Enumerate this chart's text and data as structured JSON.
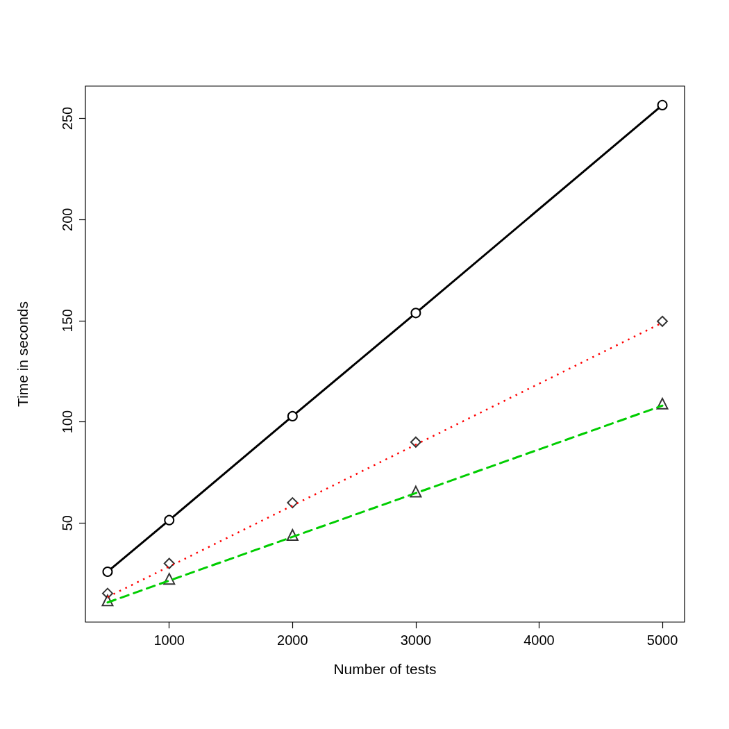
{
  "chart_data": {
    "type": "line",
    "xlabel": "Number of tests",
    "ylabel": "Time in seconds",
    "xlim": [
      320,
      5180
    ],
    "ylim": [
      1,
      266
    ],
    "xticks": [
      1000,
      2000,
      3000,
      4000,
      5000
    ],
    "yticks": [
      50,
      100,
      150,
      200,
      250
    ],
    "grid": false,
    "series": [
      {
        "color": "#000000",
        "marker": "circle",
        "line_style": "solid",
        "x": [
          500,
          1000,
          2000,
          3000,
          5000
        ],
        "values": [
          25.9,
          51.4,
          102.8,
          153.8,
          256.6
        ]
      },
      {
        "type": "scatter",
        "color": "#000000",
        "marker": "diamond",
        "x": [
          500,
          1000,
          2000,
          3000,
          5000
        ],
        "values": [
          15.2,
          30,
          60,
          90,
          149.7
        ]
      },
      {
        "type": "line",
        "color": "#ff0000",
        "marker": "none",
        "line_style": "dotted",
        "x": [
          500,
          5000
        ],
        "values": [
          13.4,
          149
        ]
      },
      {
        "type": "scatter",
        "color": "#000000",
        "marker": "triangle",
        "x": [
          500,
          1000,
          2000,
          3000,
          5000
        ],
        "values": [
          11.7,
          22.4,
          44.1,
          65.5,
          109
        ]
      },
      {
        "type": "line",
        "color": "#00cd00",
        "marker": "none",
        "line_style": "dashed",
        "x": [
          500,
          5000
        ],
        "values": [
          10.7,
          108
        ]
      }
    ]
  }
}
